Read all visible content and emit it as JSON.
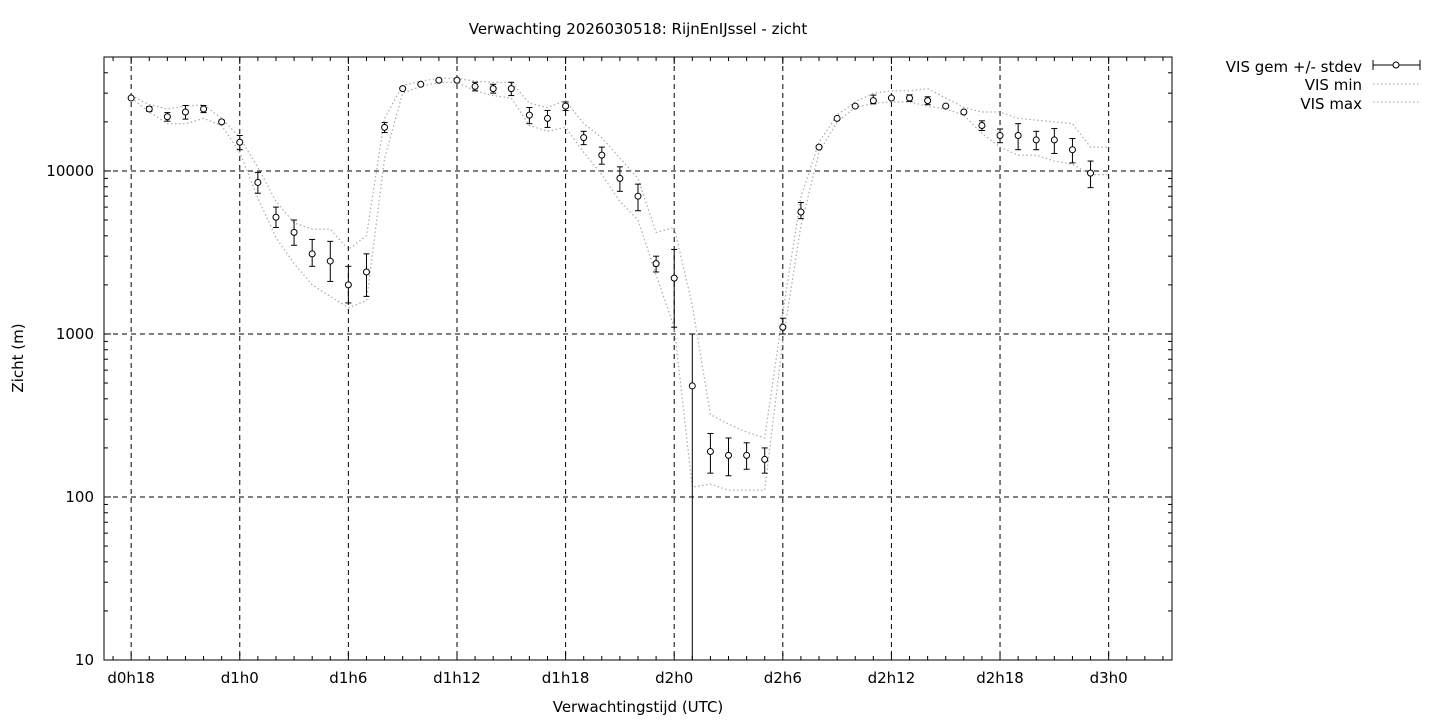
{
  "chart_data": {
    "type": "scatter",
    "title": "Verwachting 2026030518: RijnEnIJssel - zicht",
    "xlabel": "Verwachtingstijd (UTC)",
    "ylabel": "Zicht (m)",
    "x_unit": "hours since d0h0",
    "xlim": [
      16.5,
      75.5
    ],
    "ylim": [
      10,
      50000
    ],
    "y_scale": "log",
    "grid": true,
    "legend_position": "top-right, outside plot",
    "x_ticks": [
      {
        "x": 18,
        "label": "d0h18"
      },
      {
        "x": 24,
        "label": "d1h0"
      },
      {
        "x": 30,
        "label": "d1h6"
      },
      {
        "x": 36,
        "label": "d1h12"
      },
      {
        "x": 42,
        "label": "d1h18"
      },
      {
        "x": 48,
        "label": "d2h0"
      },
      {
        "x": 54,
        "label": "d2h6"
      },
      {
        "x": 60,
        "label": "d2h12"
      },
      {
        "x": 66,
        "label": "d2h18"
      },
      {
        "x": 72,
        "label": "d3h0"
      }
    ],
    "y_ticks": [
      {
        "y": 10,
        "label": "10"
      },
      {
        "y": 100,
        "label": "100"
      },
      {
        "y": 1000,
        "label": "1000"
      },
      {
        "y": 10000,
        "label": "10000"
      }
    ],
    "series": [
      {
        "name": "VIS gem +/- stdev",
        "style": "points with errorbars",
        "x": [
          18,
          19,
          20,
          21,
          22,
          23,
          24,
          25,
          26,
          27,
          28,
          29,
          30,
          31,
          32,
          33,
          34,
          35,
          36,
          37,
          38,
          39,
          40,
          41,
          42,
          43,
          44,
          45,
          46,
          47,
          48,
          49,
          50,
          51,
          52,
          53,
          54,
          55,
          56,
          57,
          58,
          59,
          60,
          61,
          62,
          63,
          64,
          65,
          66,
          67,
          68,
          69,
          70,
          71,
          72
        ],
        "y": [
          28000,
          24000,
          21500,
          23000,
          24000,
          20000,
          15000,
          8500,
          5200,
          4200,
          3100,
          2800,
          2000,
          2400,
          18500,
          32000,
          34000,
          36000,
          36000,
          33000,
          32000,
          32000,
          22000,
          21000,
          25000,
          16000,
          12500,
          9000,
          7000,
          2700,
          2200,
          480,
          190,
          180,
          180,
          170,
          1100,
          5600,
          14000,
          21000,
          25000,
          27000,
          28000,
          28000,
          27000,
          25000,
          23000,
          19000,
          16500,
          16500,
          15500,
          15500,
          13500,
          9700,
          null
        ],
        "ylow": [
          null,
          23200,
          20200,
          20800,
          22800,
          19500,
          13500,
          7300,
          4500,
          3500,
          2600,
          2100,
          1550,
          1700,
          17200,
          null,
          null,
          null,
          null,
          31000,
          30000,
          29000,
          19500,
          18500,
          23500,
          14500,
          11000,
          7500,
          5700,
          2400,
          1100,
          10,
          140,
          135,
          148,
          140,
          1000,
          5100,
          null,
          null,
          null,
          25800,
          null,
          26700,
          25500,
          null,
          null,
          17700,
          14900,
          13500,
          13500,
          12800,
          11200,
          7900,
          null
        ],
        "yhigh": [
          null,
          24800,
          22800,
          25200,
          25200,
          20500,
          16500,
          9800,
          6000,
          5000,
          3800,
          3700,
          2600,
          3100,
          19800,
          null,
          null,
          null,
          null,
          35000,
          34000,
          35000,
          24500,
          23500,
          26500,
          17500,
          14000,
          10600,
          8300,
          3000,
          3300,
          1000,
          245,
          230,
          215,
          200,
          1250,
          6400,
          null,
          null,
          null,
          29200,
          null,
          29300,
          28500,
          null,
          null,
          20300,
          18100,
          19500,
          17500,
          18200,
          15800,
          11500,
          null
        ]
      },
      {
        "name": "VIS min",
        "style": "dotted line",
        "x": [
          18,
          19,
          20,
          21,
          22,
          23,
          24,
          25,
          26,
          27,
          28,
          29,
          30,
          31,
          32,
          33,
          34,
          35,
          36,
          37,
          38,
          39,
          40,
          41,
          42,
          43,
          44,
          45,
          46,
          47,
          48,
          49,
          50,
          51,
          52,
          53,
          54,
          55,
          56,
          57,
          58,
          59,
          60,
          61,
          62,
          63,
          64,
          65,
          66,
          67,
          68,
          69,
          70,
          71,
          72
        ],
        "y": [
          28000,
          23000,
          19500,
          19500,
          21000,
          19000,
          13000,
          6800,
          3900,
          2700,
          2000,
          1700,
          1450,
          1600,
          12000,
          30000,
          33000,
          35000,
          35000,
          31000,
          29000,
          28000,
          19000,
          17500,
          18500,
          13000,
          9500,
          6500,
          5000,
          2300,
          1100,
          115,
          120,
          110,
          110,
          110,
          900,
          4600,
          13000,
          20000,
          24500,
          26000,
          26500,
          26500,
          25000,
          24000,
          22000,
          17000,
          14000,
          12500,
          12500,
          11500,
          11000,
          9500,
          9500
        ]
      },
      {
        "name": "VIS max",
        "style": "dotted line",
        "x": [
          18,
          19,
          20,
          21,
          22,
          23,
          24,
          25,
          26,
          27,
          28,
          29,
          30,
          31,
          32,
          33,
          34,
          35,
          36,
          37,
          38,
          39,
          40,
          41,
          42,
          43,
          44,
          45,
          46,
          47,
          48,
          49,
          50,
          51,
          52,
          53,
          54,
          55,
          56,
          57,
          58,
          59,
          60,
          61,
          62,
          63,
          64,
          65,
          66,
          67,
          68,
          69,
          70,
          71,
          72
        ],
        "y": [
          29000,
          25500,
          24000,
          25000,
          25500,
          21000,
          16000,
          10500,
          6500,
          4800,
          4400,
          4400,
          3300,
          4000,
          21000,
          33500,
          35500,
          37000,
          37000,
          35500,
          35000,
          35000,
          26000,
          24500,
          27000,
          19500,
          16000,
          12000,
          9000,
          4200,
          4500,
          1500,
          320,
          280,
          250,
          230,
          1350,
          6900,
          15000,
          22000,
          26500,
          30000,
          31000,
          31000,
          32000,
          28000,
          24500,
          23000,
          23000,
          21000,
          20500,
          20000,
          19500,
          14000,
          14000
        ]
      }
    ]
  }
}
